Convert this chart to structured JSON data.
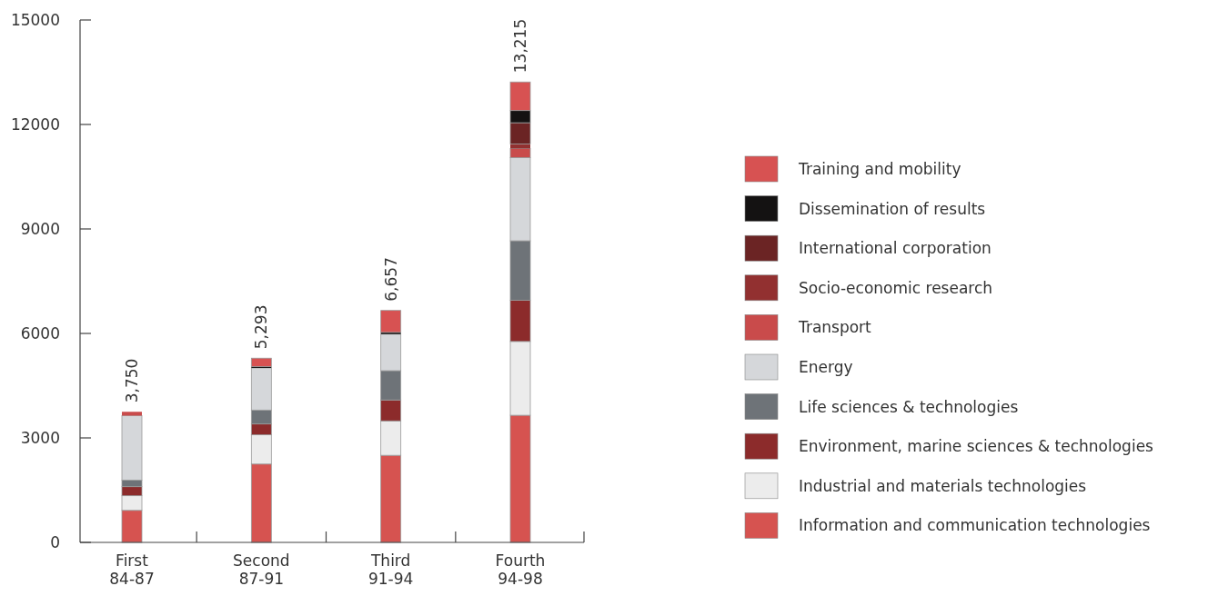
{
  "chart_data": {
    "type": "bar",
    "stacked": true,
    "categories": [
      "First\n84-87",
      "Second\n87-91",
      "Third\n91-94",
      "Fourth\n94-98"
    ],
    "series": [
      {
        "name": "Information and communication technologies",
        "color": "#d65350",
        "values": [
          920,
          2250,
          2500,
          3650
        ]
      },
      {
        "name": "Industrial and materials technologies",
        "color": "#ececec",
        "values": [
          420,
          840,
          990,
          2120
        ]
      },
      {
        "name": "Environment, marine sciences & technologies",
        "color": "#8c2b2b",
        "values": [
          260,
          310,
          600,
          1180
        ]
      },
      {
        "name": "Life sciences & technologies",
        "color": "#6e7378",
        "values": [
          190,
          400,
          840,
          1710
        ]
      },
      {
        "name": "Energy",
        "color": "#d5d7da",
        "values": [
          1850,
          1210,
          1050,
          2390
        ]
      },
      {
        "name": "Transport",
        "color": "#c94b4b",
        "values": [
          110,
          0,
          0,
          260
        ]
      },
      {
        "name": "Socio-economic research",
        "color": "#923030",
        "values": [
          0,
          0,
          0,
          130
        ]
      },
      {
        "name": "International corporation",
        "color": "#6b2424",
        "values": [
          0,
          0,
          0,
          610
        ]
      },
      {
        "name": "Dissemination of results",
        "color": "#141212",
        "values": [
          0,
          40,
          50,
          350
        ]
      },
      {
        "name": "Training and mobility",
        "color": "#d75252",
        "values": [
          0,
          240,
          630,
          820
        ]
      }
    ],
    "totals": [
      "3,750",
      "5,293",
      "6,657",
      "13,215"
    ],
    "ylim": [
      0,
      15000
    ],
    "yticks": [
      0,
      3000,
      6000,
      9000,
      12000,
      15000
    ],
    "legend": "right"
  }
}
